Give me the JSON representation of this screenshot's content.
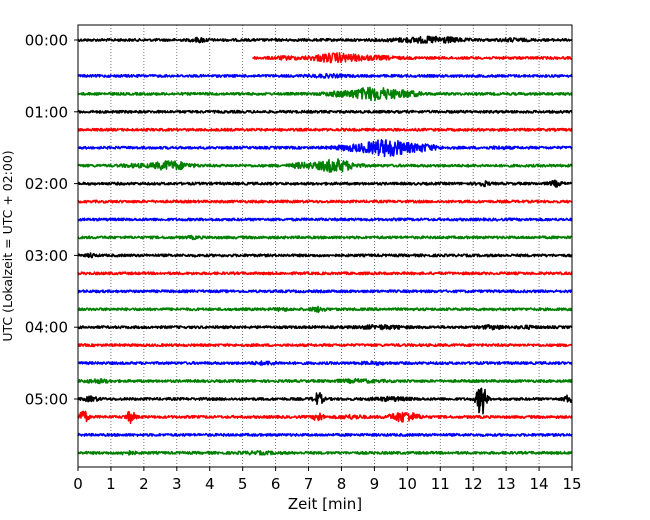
{
  "chart_data": {
    "type": "line",
    "title": "",
    "xlabel": "Zeit  [min]",
    "ylabel": "UTC (Lokalzeit = UTC + 02:00)",
    "xlim": [
      0,
      15
    ],
    "x_ticks": [
      "0",
      "1",
      "2",
      "3",
      "4",
      "5",
      "6",
      "7",
      "8",
      "9",
      "10",
      "11",
      "12",
      "13",
      "14",
      "15"
    ],
    "y_tick_labels": [
      "00:00",
      "01:00",
      "02:00",
      "03:00",
      "04:00",
      "05:00"
    ],
    "grid": "vertical dotted",
    "row_interval_min": 15,
    "colors": [
      "#000000",
      "#ff0000",
      "#0000ff",
      "#008000"
    ],
    "rows": [
      {
        "time": "00:00",
        "color": "#000000",
        "seg": [
          0,
          15
        ],
        "events": [
          [
            3.7,
            0.35,
            0.25
          ],
          [
            11.0,
            1.0,
            0.3
          ],
          [
            10.2,
            1.2,
            0.2
          ],
          [
            13.2,
            0.6,
            0.15
          ]
        ]
      },
      {
        "time": "00:15",
        "color": "#ff0000",
        "seg": [
          5.3,
          15
        ],
        "events": [
          [
            7.8,
            1.0,
            0.6
          ],
          [
            9.0,
            1.0,
            0.2
          ],
          [
            6.3,
            0.6,
            0.15
          ]
        ]
      },
      {
        "time": "00:30",
        "color": "#0000ff",
        "seg": [
          0,
          15
        ],
        "events": [
          [
            7.6,
            0.8,
            0.15
          ]
        ]
      },
      {
        "time": "00:45",
        "color": "#008000",
        "seg": [
          0,
          15
        ],
        "events": [
          [
            9.0,
            1.0,
            0.9
          ],
          [
            7.9,
            0.7,
            0.25
          ],
          [
            10.0,
            0.6,
            0.3
          ]
        ]
      },
      {
        "time": "01:00",
        "color": "#000000",
        "seg": [
          0,
          15
        ],
        "events": []
      },
      {
        "time": "01:15",
        "color": "#ff0000",
        "seg": [
          0,
          15
        ],
        "events": []
      },
      {
        "time": "01:30",
        "color": "#0000ff",
        "seg": [
          0,
          15
        ],
        "events": [
          [
            9.4,
            1.0,
            1.2
          ],
          [
            8.3,
            0.8,
            0.3
          ],
          [
            10.5,
            0.6,
            0.4
          ],
          [
            12.8,
            0.5,
            0.1
          ]
        ]
      },
      {
        "time": "01:45",
        "color": "#008000",
        "seg": [
          0,
          15
        ],
        "events": [
          [
            7.8,
            0.8,
            0.9
          ],
          [
            2.8,
            0.8,
            0.6
          ],
          [
            1.7,
            0.6,
            0.15
          ],
          [
            6.8,
            0.5,
            0.3
          ]
        ]
      },
      {
        "time": "02:00",
        "color": "#000000",
        "seg": [
          0,
          15
        ],
        "events": [
          [
            12.3,
            0.25,
            0.3
          ],
          [
            14.5,
            0.25,
            0.35
          ]
        ]
      },
      {
        "time": "02:15",
        "color": "#ff0000",
        "seg": [
          0,
          15
        ],
        "events": []
      },
      {
        "time": "02:30",
        "color": "#0000ff",
        "seg": [
          0,
          15
        ],
        "events": []
      },
      {
        "time": "02:45",
        "color": "#008000",
        "seg": [
          0,
          15
        ],
        "events": [
          [
            3.5,
            0.3,
            0.12
          ]
        ]
      },
      {
        "time": "03:00",
        "color": "#000000",
        "seg": [
          0,
          15
        ],
        "events": [
          [
            0.4,
            0.15,
            0.25
          ]
        ]
      },
      {
        "time": "03:15",
        "color": "#ff0000",
        "seg": [
          0,
          15
        ],
        "events": []
      },
      {
        "time": "03:30",
        "color": "#0000ff",
        "seg": [
          0,
          15
        ],
        "events": []
      },
      {
        "time": "03:45",
        "color": "#008000",
        "seg": [
          0,
          15
        ],
        "events": [
          [
            7.3,
            0.3,
            0.3
          ],
          [
            6.2,
            0.3,
            0.15
          ]
        ]
      },
      {
        "time": "04:00",
        "color": "#000000",
        "seg": [
          0,
          15
        ],
        "events": [
          [
            9.2,
            1.0,
            0.2
          ],
          [
            12.6,
            0.5,
            0.2
          ],
          [
            13.6,
            0.4,
            0.15
          ]
        ]
      },
      {
        "time": "04:15",
        "color": "#ff0000",
        "seg": [
          0,
          15
        ],
        "events": []
      },
      {
        "time": "04:30",
        "color": "#0000ff",
        "seg": [
          0,
          15
        ],
        "events": [
          [
            5.7,
            0.6,
            0.15
          ],
          [
            9.0,
            0.6,
            0.12
          ]
        ]
      },
      {
        "time": "04:45",
        "color": "#008000",
        "seg": [
          0,
          15
        ],
        "events": [
          [
            0.6,
            0.5,
            0.2
          ],
          [
            8.5,
            1.0,
            0.15
          ]
        ]
      },
      {
        "time": "05:00",
        "color": "#000000",
        "seg": [
          0,
          15
        ],
        "events": [
          [
            12.25,
            0.2,
            2.6
          ],
          [
            7.3,
            0.2,
            0.9
          ],
          [
            0.4,
            0.3,
            0.3
          ],
          [
            14.9,
            0.2,
            0.5
          ],
          [
            9.5,
            0.8,
            0.2
          ]
        ]
      },
      {
        "time": "05:15",
        "color": "#ff0000",
        "seg": [
          0,
          15
        ],
        "events": [
          [
            0.15,
            0.2,
            1.0
          ],
          [
            1.6,
            0.2,
            0.8
          ],
          [
            7.3,
            0.2,
            0.6
          ],
          [
            9.9,
            0.6,
            0.7
          ],
          [
            8.3,
            0.6,
            0.2
          ]
        ]
      },
      {
        "time": "05:30",
        "color": "#0000ff",
        "seg": [
          0,
          15
        ],
        "events": []
      },
      {
        "time": "05:45",
        "color": "#008000",
        "seg": [
          0,
          15
        ],
        "events": [
          [
            1.5,
            0.3,
            0.2
          ],
          [
            5.5,
            0.8,
            0.12
          ]
        ]
      }
    ]
  }
}
